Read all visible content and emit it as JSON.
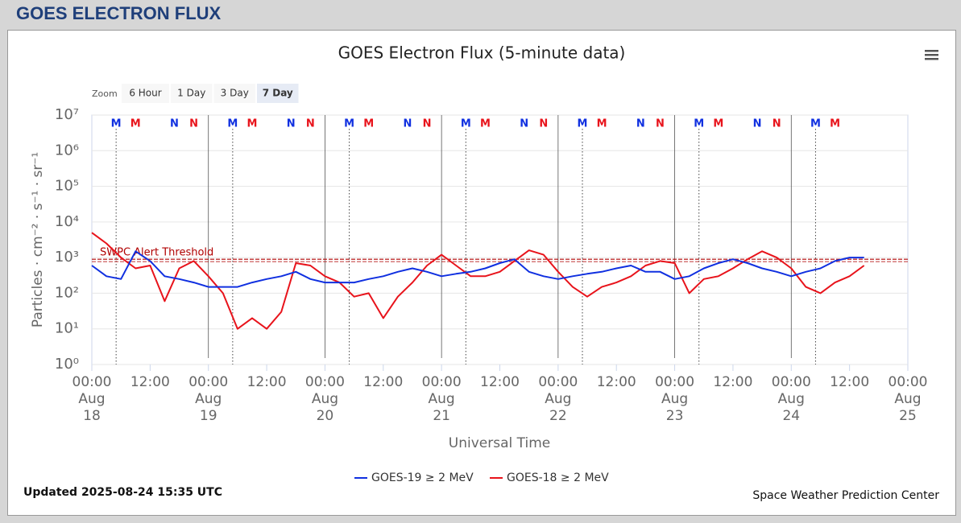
{
  "header": "GOES ELECTRON FLUX",
  "zoom": {
    "label": "Zoom",
    "buttons": [
      "6 Hour",
      "1 Day",
      "3 Day",
      "7 Day"
    ],
    "selected": 3
  },
  "footer": {
    "updated": "Updated 2025-08-24 15:35 UTC",
    "credit": "Space Weather Prediction Center"
  },
  "chart_data": {
    "type": "line",
    "title": "GOES Electron Flux (5-minute data)",
    "y_label": "Particles · cm⁻² · s⁻¹ · sr⁻¹",
    "x_label": "Universal Time",
    "log_y": true,
    "grid": true,
    "legend": "bottom",
    "ylim": [
      1,
      10000000
    ],
    "yticks": [
      {
        "value": 1,
        "label": "10⁰"
      },
      {
        "value": 10,
        "label": "10¹"
      },
      {
        "value": 100,
        "label": "10²"
      },
      {
        "value": 1000,
        "label": "10³"
      },
      {
        "value": 10000,
        "label": "10⁴"
      },
      {
        "value": 100000,
        "label": "10⁵"
      },
      {
        "value": 1000000,
        "label": "10⁶"
      },
      {
        "value": 10000000,
        "label": "10⁷"
      }
    ],
    "xlim": [
      "Aug 18 00:00",
      "Aug 25 00:00"
    ],
    "xticks": [
      {
        "value": "Aug 18 00:00",
        "label": "00:00 Aug 18"
      },
      {
        "value": "Aug 18 12:00",
        "label": "12:00"
      },
      {
        "value": "Aug 19 00:00",
        "label": "00:00 Aug 19"
      },
      {
        "value": "Aug 19 12:00",
        "label": "12:00"
      },
      {
        "value": "Aug 20 00:00",
        "label": "00:00 Aug 20"
      },
      {
        "value": "Aug 20 12:00",
        "label": "12:00"
      },
      {
        "value": "Aug 21 00:00",
        "label": "00:00 Aug 21"
      },
      {
        "value": "Aug 21 12:00",
        "label": "12:00"
      },
      {
        "value": "Aug 22 00:00",
        "label": "00:00 Aug 22"
      },
      {
        "value": "Aug 22 12:00",
        "label": "12:00"
      },
      {
        "value": "Aug 23 00:00",
        "label": "00:00 Aug 23"
      },
      {
        "value": "Aug 23 12:00",
        "label": "12:00"
      },
      {
        "value": "Aug 24 00:00",
        "label": "00:00 Aug 24"
      },
      {
        "value": "Aug 24 12:00",
        "label": "12:00"
      },
      {
        "value": "Aug 25 00:00",
        "label": "00:00 Aug 25"
      }
    ],
    "threshold": {
      "label": "SWPC Alert Threshold",
      "value": 900,
      "color": "#b00000"
    },
    "x": [
      "Aug 18 00:00",
      "Aug 18 03:00",
      "Aug 18 06:00",
      "Aug 18 09:00",
      "Aug 18 12:00",
      "Aug 18 15:00",
      "Aug 18 18:00",
      "Aug 18 21:00",
      "Aug 19 00:00",
      "Aug 19 03:00",
      "Aug 19 06:00",
      "Aug 19 09:00",
      "Aug 19 12:00",
      "Aug 19 15:00",
      "Aug 19 18:00",
      "Aug 19 21:00",
      "Aug 20 00:00",
      "Aug 20 03:00",
      "Aug 20 06:00",
      "Aug 20 09:00",
      "Aug 20 12:00",
      "Aug 20 15:00",
      "Aug 20 18:00",
      "Aug 20 21:00",
      "Aug 21 00:00",
      "Aug 21 03:00",
      "Aug 21 06:00",
      "Aug 21 09:00",
      "Aug 21 12:00",
      "Aug 21 15:00",
      "Aug 21 18:00",
      "Aug 21 21:00",
      "Aug 22 00:00",
      "Aug 22 03:00",
      "Aug 22 06:00",
      "Aug 22 09:00",
      "Aug 22 12:00",
      "Aug 22 15:00",
      "Aug 22 18:00",
      "Aug 22 21:00",
      "Aug 23 00:00",
      "Aug 23 03:00",
      "Aug 23 06:00",
      "Aug 23 09:00",
      "Aug 23 12:00",
      "Aug 23 15:00",
      "Aug 23 18:00",
      "Aug 23 21:00",
      "Aug 24 00:00",
      "Aug 24 03:00",
      "Aug 24 06:00",
      "Aug 24 09:00",
      "Aug 24 12:00",
      "Aug 24 15:00"
    ],
    "series": [
      {
        "name": "GOES-19 ≥ 2 MeV",
        "color": "#1030e0",
        "values": [
          600,
          300,
          250,
          1500,
          800,
          300,
          250,
          200,
          150,
          150,
          150,
          200,
          250,
          300,
          400,
          250,
          200,
          200,
          200,
          250,
          300,
          400,
          500,
          400,
          300,
          350,
          400,
          500,
          700,
          900,
          400,
          300,
          250,
          300,
          350,
          400,
          500,
          600,
          400,
          400,
          250,
          300,
          500,
          700,
          900,
          700,
          500,
          400,
          300,
          400,
          500,
          800,
          1000,
          1000
        ]
      },
      {
        "name": "GOES-18 ≥ 2 MeV",
        "color": "#e8131b",
        "values": [
          5000,
          2500,
          1000,
          500,
          600,
          60,
          500,
          800,
          300,
          100,
          10,
          20,
          10,
          30,
          700,
          600,
          300,
          200,
          80,
          100,
          20,
          80,
          200,
          600,
          1200,
          600,
          300,
          300,
          400,
          800,
          1600,
          1200,
          400,
          150,
          80,
          150,
          200,
          300,
          600,
          800,
          700,
          100,
          250,
          300,
          500,
          900,
          1500,
          1000,
          500,
          150,
          100,
          200,
          300,
          600
        ]
      }
    ],
    "markers": [
      {
        "label": "M",
        "x": "Aug 18 05:00",
        "series": 0
      },
      {
        "label": "M",
        "x": "Aug 18 09:00",
        "series": 1
      },
      {
        "label": "N",
        "x": "Aug 18 17:00",
        "series": 0
      },
      {
        "label": "N",
        "x": "Aug 18 21:00",
        "series": 1
      },
      {
        "label": "M",
        "x": "Aug 19 05:00",
        "series": 0
      },
      {
        "label": "M",
        "x": "Aug 19 09:00",
        "series": 1
      },
      {
        "label": "N",
        "x": "Aug 19 17:00",
        "series": 0
      },
      {
        "label": "N",
        "x": "Aug 19 21:00",
        "series": 1
      },
      {
        "label": "M",
        "x": "Aug 20 05:00",
        "series": 0
      },
      {
        "label": "M",
        "x": "Aug 20 09:00",
        "series": 1
      },
      {
        "label": "N",
        "x": "Aug 20 17:00",
        "series": 0
      },
      {
        "label": "N",
        "x": "Aug 20 21:00",
        "series": 1
      },
      {
        "label": "M",
        "x": "Aug 21 05:00",
        "series": 0
      },
      {
        "label": "M",
        "x": "Aug 21 09:00",
        "series": 1
      },
      {
        "label": "N",
        "x": "Aug 21 17:00",
        "series": 0
      },
      {
        "label": "N",
        "x": "Aug 21 21:00",
        "series": 1
      },
      {
        "label": "M",
        "x": "Aug 22 05:00",
        "series": 0
      },
      {
        "label": "M",
        "x": "Aug 22 09:00",
        "series": 1
      },
      {
        "label": "N",
        "x": "Aug 22 17:00",
        "series": 0
      },
      {
        "label": "N",
        "x": "Aug 22 21:00",
        "series": 1
      },
      {
        "label": "M",
        "x": "Aug 23 05:00",
        "series": 0
      },
      {
        "label": "M",
        "x": "Aug 23 09:00",
        "series": 1
      },
      {
        "label": "N",
        "x": "Aug 23 17:00",
        "series": 0
      },
      {
        "label": "N",
        "x": "Aug 23 21:00",
        "series": 1
      },
      {
        "label": "M",
        "x": "Aug 24 05:00",
        "series": 0
      },
      {
        "label": "M",
        "x": "Aug 24 09:00",
        "series": 1
      }
    ]
  }
}
